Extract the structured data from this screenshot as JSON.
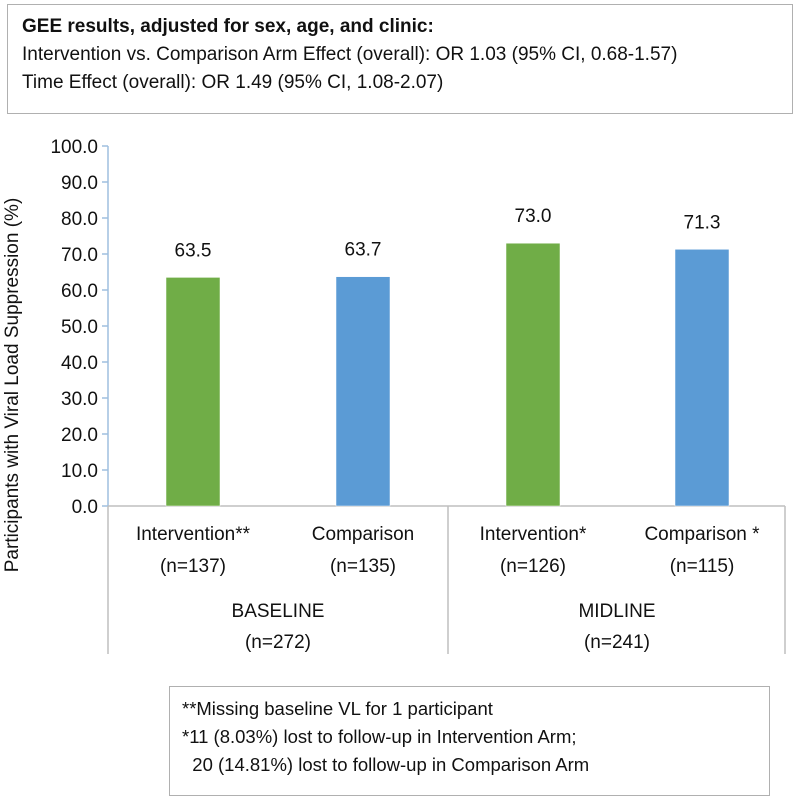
{
  "gee": {
    "title": "GEE results, adjusted for sex, age, and clinic:",
    "line1": "Intervention vs. Comparison Arm Effect (overall): OR 1.03 (95% CI, 0.68-1.57)",
    "line2": "Time Effect (overall): OR 1.49 (95% CI, 1.08-2.07)"
  },
  "chart_data": {
    "type": "bar",
    "ylabel": "Participants with Viral Load Suppression (%)",
    "ylim": [
      0,
      100
    ],
    "yticks": [
      "0.0",
      "10.0",
      "20.0",
      "30.0",
      "40.0",
      "50.0",
      "60.0",
      "70.0",
      "80.0",
      "90.0",
      "100.0"
    ],
    "bars": [
      {
        "label": "Intervention**",
        "n": "(n=137)",
        "value": 63.5,
        "value_label": "63.5",
        "color": "#70ad47"
      },
      {
        "label": "Comparison",
        "n": "(n=135)",
        "value": 63.7,
        "value_label": "63.7",
        "color": "#5b9bd5"
      },
      {
        "label": "Intervention*",
        "n": "(n=126)",
        "value": 73.0,
        "value_label": "73.0",
        "color": "#70ad47"
      },
      {
        "label": "Comparison *",
        "n": "(n=115)",
        "value": 71.3,
        "value_label": "71.3",
        "color": "#5b9bd5"
      }
    ],
    "groups": [
      {
        "label": "BASELINE",
        "n": "(n=272)"
      },
      {
        "label": "MIDLINE",
        "n": "(n=241)"
      }
    ]
  },
  "notes": {
    "line1": "**Missing baseline VL for 1 participant",
    "line2": "*11 (8.03%) lost to follow-up in Intervention Arm;",
    "line3": "  20 (14.81%) lost to follow-up in Comparison Arm"
  }
}
